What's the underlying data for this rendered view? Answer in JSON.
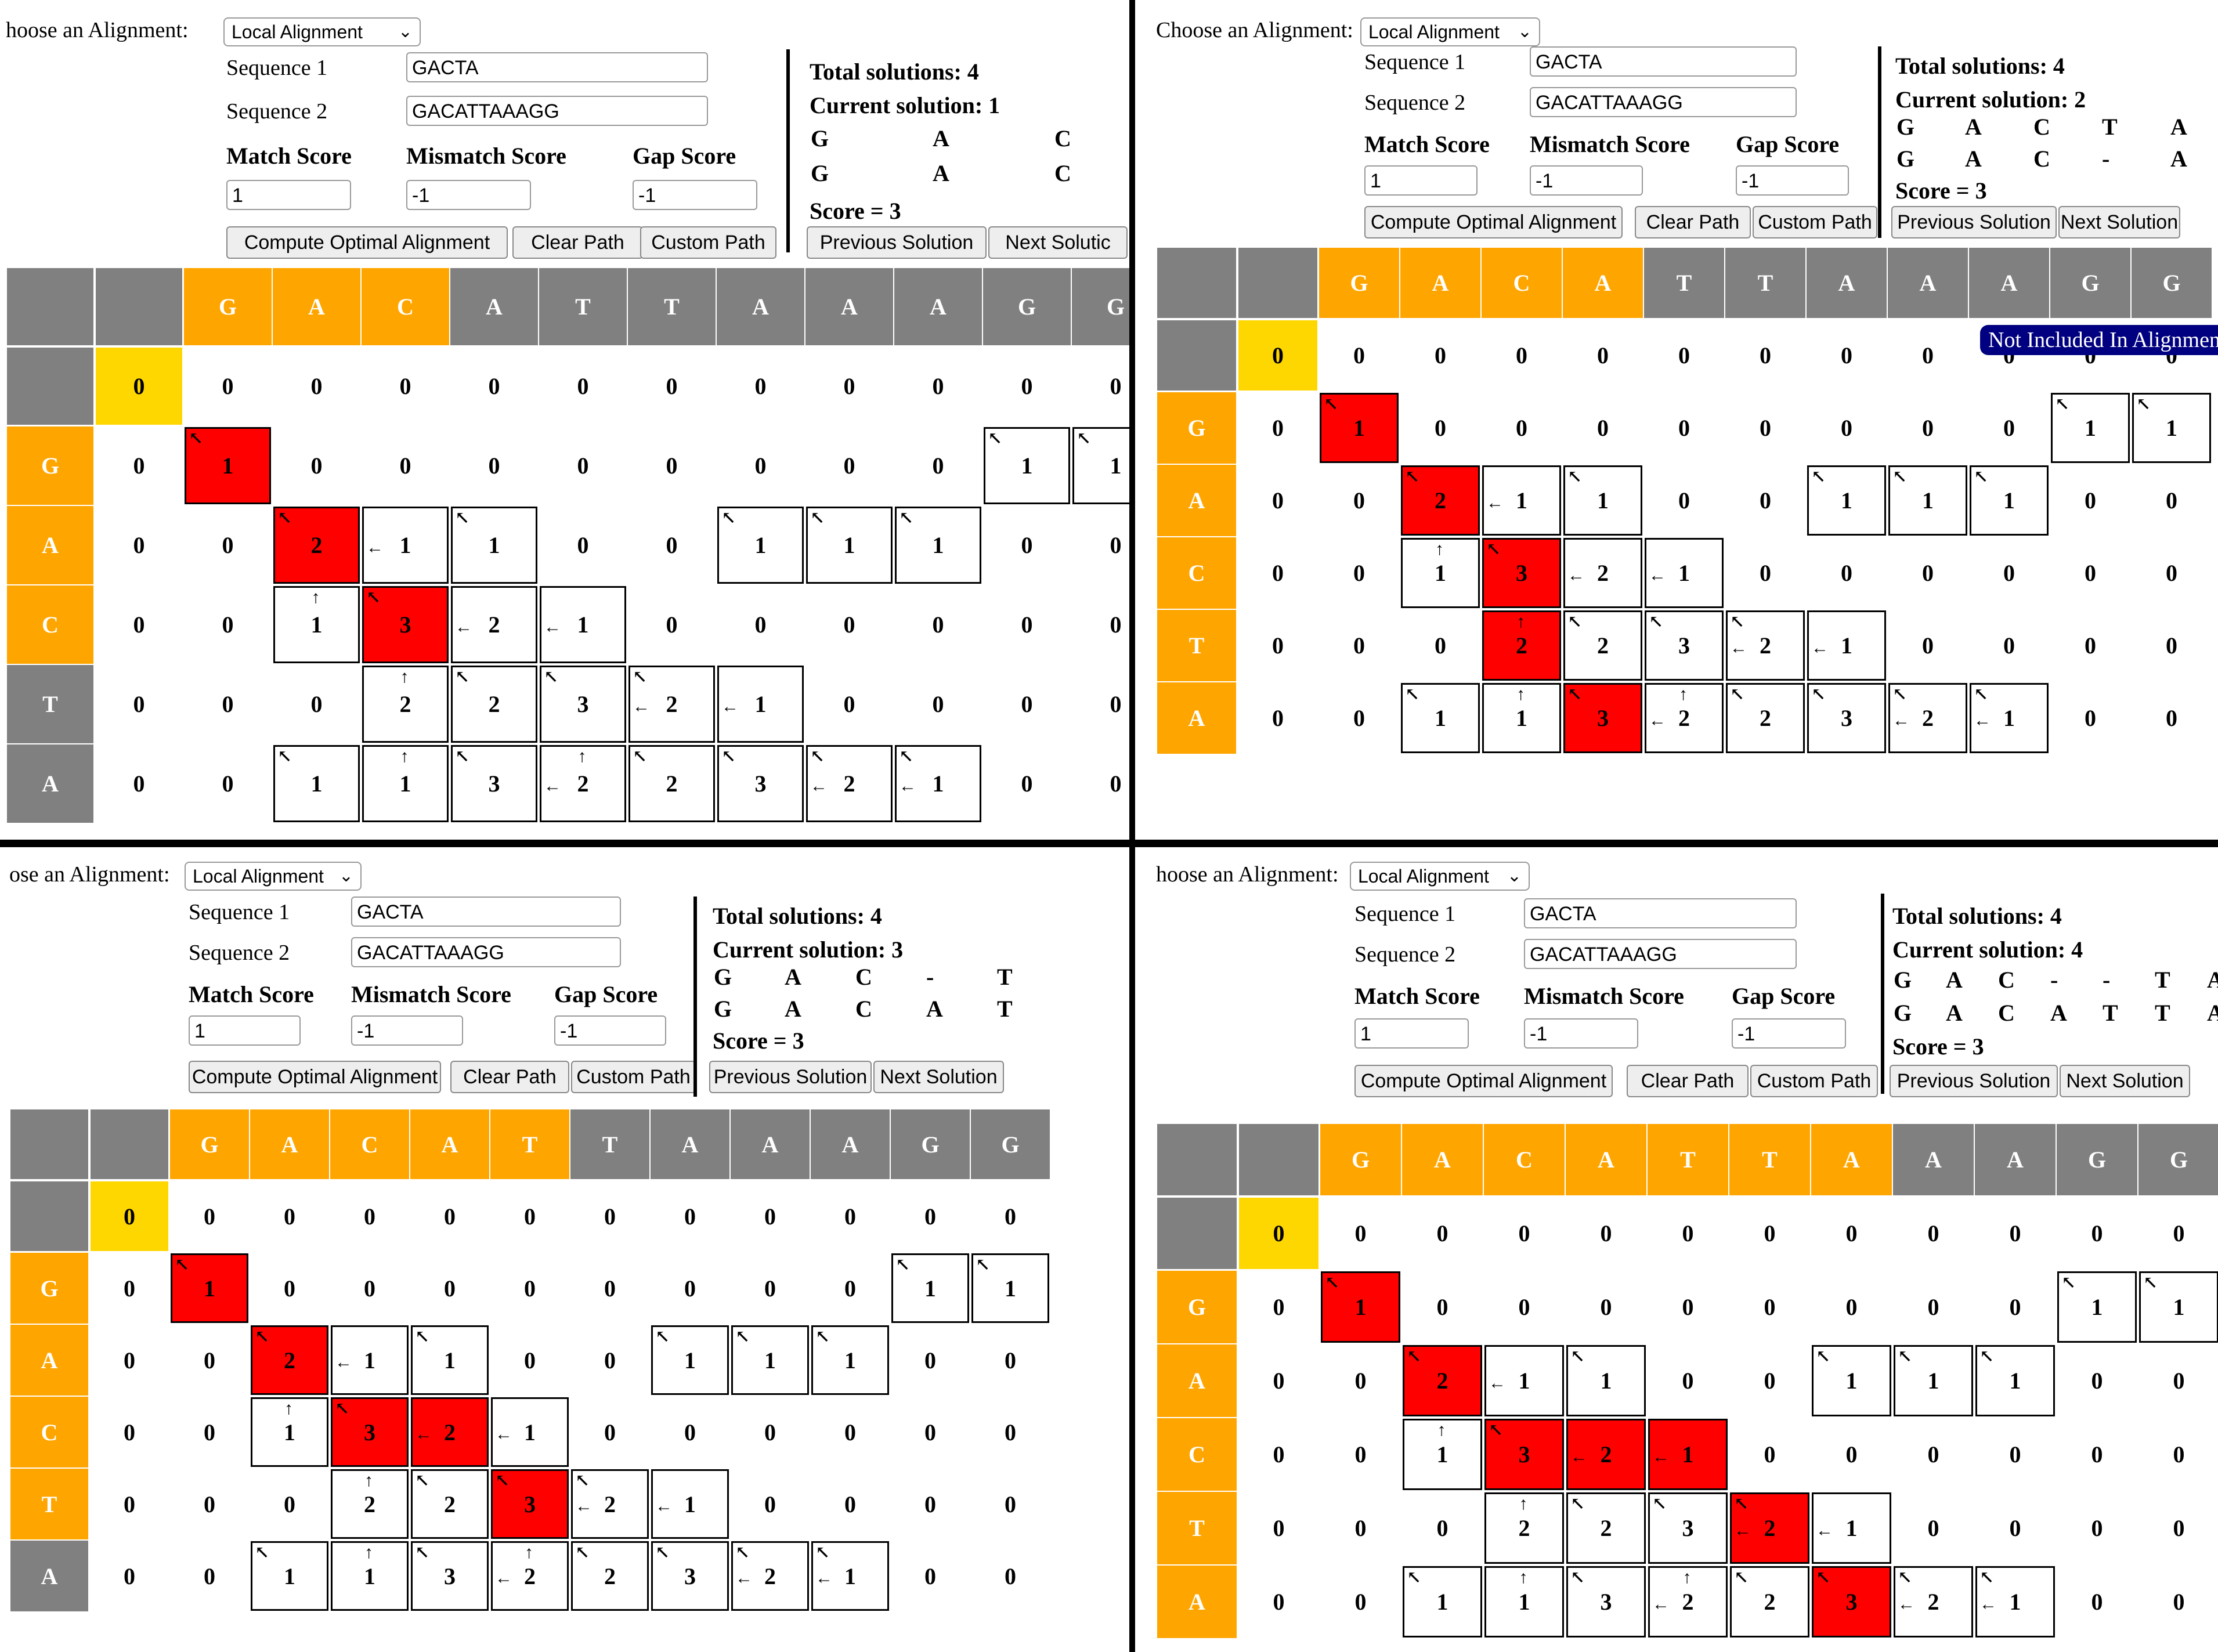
{
  "panels": [
    {
      "choose_label": "hoose an Alignment:",
      "mode": "Local Alignment",
      "seq1_label": "Sequence 1",
      "seq1": "GACTA",
      "seq2_label": "Sequence 2",
      "seq2": "GACATTAAAGG",
      "match_label": "Match Score",
      "mismatch_label": "Mismatch Score",
      "gap_label": "Gap Score",
      "match": "1",
      "mismatch": "-1",
      "gap": "-1",
      "compute_label": "Compute Optimal Alignment",
      "clear_label": "Clear Path",
      "custom_label": "Custom Path",
      "total": "Total solutions: 4",
      "current": "Current solution: 1",
      "align_top": [
        "G",
        "A",
        "C"
      ],
      "align_bottom": [
        "G",
        "A",
        "C"
      ],
      "score": "Score = 3",
      "prev_label": "Previous Solution",
      "next_label": "Next Solutic",
      "tooltip": ""
    },
    {
      "choose_label": "Choose an Alignment:",
      "mode": "Local Alignment",
      "seq1_label": "Sequence 1",
      "seq1": "GACTA",
      "seq2_label": "Sequence 2",
      "seq2": "GACATTAAAGG",
      "match_label": "Match Score",
      "mismatch_label": "Mismatch Score",
      "gap_label": "Gap Score",
      "match": "1",
      "mismatch": "-1",
      "gap": "-1",
      "compute_label": "Compute Optimal Alignment",
      "clear_label": "Clear Path",
      "custom_label": "Custom Path",
      "total": "Total solutions: 4",
      "current": "Current solution: 2",
      "align_top": [
        "G",
        "A",
        "C",
        "T",
        "A"
      ],
      "align_bottom": [
        "G",
        "A",
        "C",
        "-",
        "A"
      ],
      "score": "Score = 3",
      "prev_label": "Previous Solution",
      "next_label": "Next Solution",
      "tooltip": "Not Included In Alignment"
    },
    {
      "choose_label": "ose an Alignment:",
      "mode": "Local Alignment",
      "seq1_label": "Sequence 1",
      "seq1": "GACTA",
      "seq2_label": "Sequence 2",
      "seq2": "GACATTAAAGG",
      "match_label": "Match Score",
      "mismatch_label": "Mismatch Score",
      "gap_label": "Gap Score",
      "match": "1",
      "mismatch": "-1",
      "gap": "-1",
      "compute_label": "Compute Optimal Alignment",
      "clear_label": "Clear Path",
      "custom_label": "Custom Path",
      "total": "Total solutions: 4",
      "current": "Current solution: 3",
      "align_top": [
        "G",
        "A",
        "C",
        "-",
        "T"
      ],
      "align_bottom": [
        "G",
        "A",
        "C",
        "A",
        "T"
      ],
      "score": "Score = 3",
      "prev_label": "Previous Solution",
      "next_label": "Next Solution",
      "tooltip": ""
    },
    {
      "choose_label": "hoose an Alignment:",
      "mode": "Local Alignment",
      "seq1_label": "Sequence 1",
      "seq1": "GACTA",
      "seq2_label": "Sequence 2",
      "seq2": "GACATTAAAGG",
      "match_label": "Match Score",
      "mismatch_label": "Mismatch Score",
      "gap_label": "Gap Score",
      "match": "1",
      "mismatch": "-1",
      "gap": "-1",
      "compute_label": "Compute Optimal Alignment",
      "clear_label": "Clear Path",
      "custom_label": "Custom Path",
      "total": "Total solutions: 4",
      "current": "Current solution: 4",
      "align_top": [
        "G",
        "A",
        "C",
        "-",
        "-",
        "T",
        "A"
      ],
      "align_bottom": [
        "G",
        "A",
        "C",
        "A",
        "T",
        "T",
        "A"
      ],
      "score": "Score = 3",
      "prev_label": "Previous Solution",
      "next_label": "Next Solution",
      "tooltip": ""
    }
  ],
  "grid": {
    "col_headers": [
      "G",
      "A",
      "C",
      "A",
      "T",
      "T",
      "A",
      "A",
      "A",
      "G",
      "G"
    ],
    "row_headers": [
      "G",
      "A",
      "C",
      "T",
      "A"
    ],
    "start_value": "0",
    "rows": [
      [
        "0",
        "0",
        "0",
        "0",
        "0",
        "0",
        "0",
        "0",
        "0",
        "0",
        "0",
        "0"
      ],
      [
        "0",
        "1",
        "0",
        "0",
        "0",
        "0",
        "0",
        "0",
        "0",
        "0",
        "1",
        "1"
      ],
      [
        "0",
        "0",
        "2",
        "1",
        "1",
        "0",
        "0",
        "1",
        "1",
        "1",
        "0",
        "0"
      ],
      [
        "0",
        "0",
        "1",
        "3",
        "2",
        "1",
        "0",
        "0",
        "0",
        "0",
        "0",
        "0"
      ],
      [
        "0",
        "0",
        "0",
        "2",
        "2",
        "3",
        "2",
        "1",
        "0",
        "0",
        "0",
        "0"
      ],
      [
        "0",
        "0",
        "1",
        "1",
        "3",
        "2",
        "2",
        "3",
        "2",
        "1",
        "0",
        "0"
      ]
    ],
    "colors": {
      "gray": "#808080",
      "orange": "#ffa500",
      "yellow": "#ffd700",
      "red": "#ff0000"
    }
  }
}
